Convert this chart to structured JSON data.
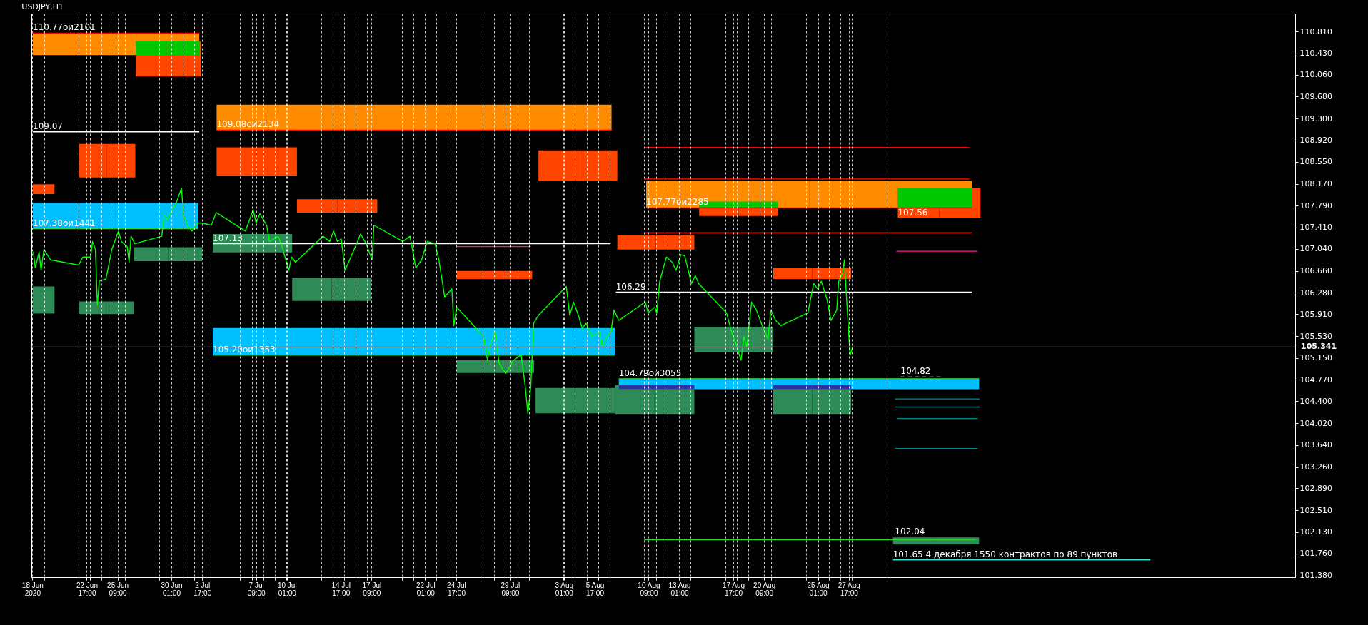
{
  "chart_data": {
    "type": "line",
    "title": "USDJPY,H1",
    "xlim": [
      "2020-06-17T22:00",
      "2020-10-05T09:00"
    ],
    "ylim": [
      101.35,
      111.12
    ],
    "xticks": [
      {
        "value": "2020-06-18T00:00",
        "label": "18 Jun 2020"
      },
      {
        "value": "2020-06-19T00:00",
        "label": null
      },
      {
        "value": "2020-06-22T00:00",
        "label": null
      },
      {
        "value": "2020-06-22T17:00",
        "label": "22 Jun 17:00"
      },
      {
        "value": "2020-06-23T00:00",
        "label": null
      },
      {
        "value": "2020-06-24T00:00",
        "label": null
      },
      {
        "value": "2020-06-25T00:00",
        "label": null
      },
      {
        "value": "2020-06-25T09:00",
        "label": "25 Jun 09:00"
      },
      {
        "value": "2020-06-26T00:00",
        "label": null
      },
      {
        "value": "2020-06-29T00:00",
        "label": null
      },
      {
        "value": "2020-06-30T00:00",
        "label": null
      },
      {
        "value": "2020-06-30T01:00",
        "label": "30 Jun 01:00"
      },
      {
        "value": "2020-07-01T00:00",
        "label": null
      },
      {
        "value": "2020-07-02T00:00",
        "label": null
      },
      {
        "value": "2020-07-02T17:00",
        "label": "2 Jul 17:00"
      },
      {
        "value": "2020-07-03T00:00",
        "label": null
      },
      {
        "value": "2020-07-06T00:00",
        "label": null
      },
      {
        "value": "2020-07-07T00:00",
        "label": null
      },
      {
        "value": "2020-07-07T09:00",
        "label": "7 Jul 09:00"
      },
      {
        "value": "2020-07-08T00:00",
        "label": null
      },
      {
        "value": "2020-07-09T00:00",
        "label": null
      },
      {
        "value": "2020-07-10T00:00",
        "label": null
      },
      {
        "value": "2020-07-10T01:00",
        "label": "10 Jul 01:00"
      },
      {
        "value": "2020-07-13T00:00",
        "label": null
      },
      {
        "value": "2020-07-14T00:00",
        "label": null
      },
      {
        "value": "2020-07-14T17:00",
        "label": "14 Jul 17:00"
      },
      {
        "value": "2020-07-15T00:00",
        "label": null
      },
      {
        "value": "2020-07-16T00:00",
        "label": null
      },
      {
        "value": "2020-07-17T00:00",
        "label": null
      },
      {
        "value": "2020-07-17T09:00",
        "label": "17 Jul 09:00"
      },
      {
        "value": "2020-07-20T00:00",
        "label": null
      },
      {
        "value": "2020-07-21T00:00",
        "label": null
      },
      {
        "value": "2020-07-22T00:00",
        "label": null
      },
      {
        "value": "2020-07-22T01:00",
        "label": "22 Jul 01:00"
      },
      {
        "value": "2020-07-23T00:00",
        "label": null
      },
      {
        "value": "2020-07-24T00:00",
        "label": null
      },
      {
        "value": "2020-07-24T17:00",
        "label": "24 Jul 17:00"
      },
      {
        "value": "2020-07-27T00:00",
        "label": null
      },
      {
        "value": "2020-07-28T00:00",
        "label": null
      },
      {
        "value": "2020-07-29T00:00",
        "label": null
      },
      {
        "value": "2020-07-29T09:00",
        "label": "29 Jul 09:00"
      },
      {
        "value": "2020-07-30T00:00",
        "label": null
      },
      {
        "value": "2020-07-31T00:00",
        "label": null
      },
      {
        "value": "2020-08-03T00:00",
        "label": null
      },
      {
        "value": "2020-08-03T01:00",
        "label": "3 Aug 01:00"
      },
      {
        "value": "2020-08-04T00:00",
        "label": null
      },
      {
        "value": "2020-08-05T00:00",
        "label": null
      },
      {
        "value": "2020-08-05T17:00",
        "label": "5 Aug 17:00"
      },
      {
        "value": "2020-08-06T00:00",
        "label": null
      },
      {
        "value": "2020-08-07T00:00",
        "label": null
      },
      {
        "value": "2020-08-10T00:00",
        "label": null
      },
      {
        "value": "2020-08-10T09:00",
        "label": "10 Aug 09:00"
      },
      {
        "value": "2020-08-11T00:00",
        "label": null
      },
      {
        "value": "2020-08-12T00:00",
        "label": null
      },
      {
        "value": "2020-08-13T00:00",
        "label": null
      },
      {
        "value": "2020-08-13T01:00",
        "label": "13 Aug 01:00"
      },
      {
        "value": "2020-08-14T00:00",
        "label": null
      },
      {
        "value": "2020-08-17T00:00",
        "label": null
      },
      {
        "value": "2020-08-17T17:00",
        "label": "17 Aug 17:00"
      },
      {
        "value": "2020-08-18T00:00",
        "label": null
      },
      {
        "value": "2020-08-19T00:00",
        "label": null
      },
      {
        "value": "2020-08-20T00:00",
        "label": null
      },
      {
        "value": "2020-08-20T09:00",
        "label": "20 Aug 09:00"
      },
      {
        "value": "2020-08-21T00:00",
        "label": null
      },
      {
        "value": "2020-08-24T00:00",
        "label": null
      },
      {
        "value": "2020-08-25T00:00",
        "label": null
      },
      {
        "value": "2020-08-25T01:00",
        "label": "25 Aug 01:00"
      },
      {
        "value": "2020-08-26T00:00",
        "label": null
      },
      {
        "value": "2020-08-27T00:00",
        "label": null
      },
      {
        "value": "2020-08-27T17:00",
        "label": "27 Aug 17:00"
      },
      {
        "value": "2020-08-28T00:00",
        "label": null
      },
      {
        "value": "2020-08-31T00:00",
        "label": null
      }
    ],
    "yticks": [
      {
        "value": 110.81,
        "label": "110.810"
      },
      {
        "value": 110.43,
        "label": "110.430"
      },
      {
        "value": 110.06,
        "label": "110.060"
      },
      {
        "value": 109.68,
        "label": "109.680"
      },
      {
        "value": 109.3,
        "label": "109.300"
      },
      {
        "value": 108.92,
        "label": "108.920"
      },
      {
        "value": 108.55,
        "label": "108.550"
      },
      {
        "value": 108.17,
        "label": "108.170"
      },
      {
        "value": 107.79,
        "label": "107.790"
      },
      {
        "value": 107.41,
        "label": "107.410"
      },
      {
        "value": 107.04,
        "label": "107.040"
      },
      {
        "value": 106.66,
        "label": "106.660"
      },
      {
        "value": 106.28,
        "label": "106.280"
      },
      {
        "value": 105.91,
        "label": "105.910"
      },
      {
        "value": 105.53,
        "label": "105.530"
      },
      {
        "value": 105.15,
        "label": "105.150"
      },
      {
        "value": 104.77,
        "label": "104.770"
      },
      {
        "value": 104.4,
        "label": "104.400"
      },
      {
        "value": 104.02,
        "label": "104.020"
      },
      {
        "value": 103.64,
        "label": "103.640"
      },
      {
        "value": 103.26,
        "label": "103.260"
      },
      {
        "value": 102.89,
        "label": "102.890"
      },
      {
        "value": 102.51,
        "label": "102.510"
      },
      {
        "value": 102.13,
        "label": "102.130"
      },
      {
        "value": 101.76,
        "label": "101.760"
      },
      {
        "value": 101.38,
        "label": "101.380"
      }
    ],
    "grid": "x",
    "series": [
      {
        "color": "#ff8c00",
        "x": [
          "2020-06-18T01:00",
          "2020-07-02T11:00"
        ],
        "values": [
          null,
          null
        ],
        "lower": [
          110.4,
          110.4
        ],
        "upper": [
          110.78,
          110.78
        ]
      },
      {
        "color": "#ff4500",
        "x": [
          "2020-06-26T23:00",
          "2020-07-02T15:00"
        ],
        "values": [
          null,
          null
        ],
        "lower": [
          110.03,
          110.03
        ],
        "upper": [
          110.64,
          110.64
        ]
      },
      {
        "color": "#00c800",
        "x": [
          "2020-06-26T23:00",
          "2020-07-02T11:00"
        ],
        "values": [
          null,
          null
        ],
        "lower": [
          110.4,
          110.4
        ],
        "upper": [
          110.64,
          110.64
        ]
      },
      {
        "color": "#ff8c00",
        "x": [
          "2020-07-03T23:00",
          "2020-08-07T04:00"
        ],
        "values": [
          null,
          null
        ],
        "lower": [
          109.1,
          109.1
        ],
        "upper": [
          109.54,
          109.54
        ]
      },
      {
        "color": "#ff4500",
        "x": [
          "2020-06-22T00:00",
          "2020-06-26T22:00"
        ],
        "values": [
          null,
          null
        ],
        "lower": [
          108.28,
          108.28
        ],
        "upper": [
          108.86,
          108.86
        ]
      },
      {
        "color": "#ff4500",
        "x": [
          "2020-06-18T01:00",
          "2020-06-19T22:00"
        ],
        "values": [
          null,
          null
        ],
        "lower": [
          107.99,
          107.99
        ],
        "upper": [
          108.16,
          108.16
        ]
      },
      {
        "color": "#00bfff",
        "x": [
          "2020-06-18T01:00",
          "2020-07-02T09:00"
        ],
        "values": [
          null,
          null
        ],
        "lower": [
          107.39,
          107.39
        ],
        "upper": [
          107.84,
          107.84
        ]
      },
      {
        "color": "#ff4500",
        "x": [
          "2020-07-03T23:00",
          "2020-07-10T22:00"
        ],
        "values": [
          null,
          null
        ],
        "lower": [
          108.31,
          108.31
        ],
        "upper": [
          108.8,
          108.8
        ]
      },
      {
        "color": "#ff4500",
        "x": [
          "2020-07-10T22:00",
          "2020-07-17T21:00"
        ],
        "values": [
          null,
          null
        ],
        "lower": [
          107.67,
          107.67
        ],
        "upper": [
          107.9,
          107.9
        ]
      },
      {
        "color": "#ff4500",
        "x": [
          "2020-07-31T20:00",
          "2020-08-07T16:00"
        ],
        "values": [
          null,
          null
        ],
        "lower": [
          108.22,
          108.22
        ],
        "upper": [
          108.75,
          108.75
        ]
      },
      {
        "color": "#ff8c00",
        "x": [
          "2020-08-10T04:00",
          "2020-09-07T09:00"
        ],
        "values": [
          null,
          null
        ],
        "lower": [
          107.75,
          107.75
        ],
        "upper": [
          108.22,
          108.22
        ]
      },
      {
        "color": "#00c800",
        "x": [
          "2020-08-14T18:00",
          "2020-08-21T14:00"
        ],
        "values": [
          null,
          null
        ],
        "lower": [
          107.75,
          107.75
        ],
        "upper": [
          107.86,
          107.86
        ]
      },
      {
        "color": "#ff4500",
        "x": [
          "2020-08-14T18:00",
          "2020-08-21T14:00"
        ],
        "values": [
          null,
          null
        ],
        "lower": [
          107.61,
          107.61
        ],
        "upper": [
          107.75,
          107.75
        ]
      },
      {
        "color": "#ff4500",
        "x": [
          "2020-08-31T23:00",
          "2020-09-08T03:00"
        ],
        "values": [
          null,
          null
        ],
        "lower": [
          107.57,
          107.57
        ],
        "upper": [
          108.09,
          108.09
        ]
      },
      {
        "color": "#00c800",
        "x": [
          "2020-08-31T23:00",
          "2020-09-07T09:00"
        ],
        "values": [
          null,
          null
        ],
        "lower": [
          107.75,
          107.75
        ],
        "upper": [
          108.09,
          108.09
        ]
      },
      {
        "color": "#2e8b57",
        "x": [
          "2020-06-18T01:00",
          "2020-06-19T22:00"
        ],
        "values": [
          null,
          null
        ],
        "lower": [
          105.92,
          105.92
        ],
        "upper": [
          106.39,
          106.39
        ]
      },
      {
        "color": "#2e8b57",
        "x": [
          "2020-06-22T00:00",
          "2020-06-26T19:00"
        ],
        "values": [
          null,
          null
        ],
        "lower": [
          105.91,
          105.91
        ],
        "upper": [
          106.13,
          106.13
        ]
      },
      {
        "color": "#2e8b57",
        "x": [
          "2020-06-26T19:00",
          "2020-07-02T17:00"
        ],
        "values": [
          null,
          null
        ],
        "lower": [
          106.83,
          106.83
        ],
        "upper": [
          107.07,
          107.07
        ]
      },
      {
        "color": "#2e8b57",
        "x": [
          "2020-07-03T15:00",
          "2020-07-10T12:00"
        ],
        "values": [
          null,
          null
        ],
        "lower": [
          106.98,
          106.98
        ],
        "upper": [
          107.3,
          107.3
        ]
      },
      {
        "color": "#2e8b57",
        "x": [
          "2020-07-10T12:00",
          "2020-07-17T08:00"
        ],
        "values": [
          null,
          null
        ],
        "lower": [
          106.14,
          106.14
        ],
        "upper": [
          106.54,
          106.54
        ]
      },
      {
        "color": "#ff4500",
        "x": [
          "2020-07-24T18:00",
          "2020-07-31T07:00"
        ],
        "values": [
          null,
          null
        ],
        "lower": [
          106.52,
          106.52
        ],
        "upper": [
          106.66,
          106.66
        ]
      },
      {
        "color": "#ff4500",
        "x": [
          "2020-08-07T16:00",
          "2020-08-14T08:00"
        ],
        "values": [
          null,
          null
        ],
        "lower": [
          107.03,
          107.03
        ],
        "upper": [
          107.28,
          107.28
        ]
      },
      {
        "color": "#ff4500",
        "x": [
          "2020-08-21T04:00",
          "2020-08-27T22:00"
        ],
        "values": [
          null,
          null
        ],
        "lower": [
          106.52,
          106.52
        ],
        "upper": [
          106.71,
          106.71
        ]
      },
      {
        "color": "#00bfff",
        "x": [
          "2020-07-03T15:00",
          "2020-08-07T11:00"
        ],
        "values": [
          null,
          null
        ],
        "lower": [
          105.2,
          105.2
        ],
        "upper": [
          105.67,
          105.67
        ]
      },
      {
        "color": "#2e8b57",
        "x": [
          "2020-07-24T18:00",
          "2020-07-31T11:00"
        ],
        "values": [
          null,
          null
        ],
        "lower": [
          104.89,
          104.89
        ],
        "upper": [
          105.11,
          105.11
        ]
      },
      {
        "color": "#2e8b57",
        "x": [
          "2020-07-31T14:00",
          "2020-08-07T11:00"
        ],
        "values": [
          null,
          null
        ],
        "lower": [
          104.19,
          104.19
        ],
        "upper": [
          104.63,
          104.63
        ]
      },
      {
        "color": "#2e8b57",
        "x": [
          "2020-08-07T11:00",
          "2020-08-14T08:00"
        ],
        "values": [
          null,
          null
        ],
        "lower": [
          104.18,
          104.18
        ],
        "upper": [
          104.68,
          104.68
        ]
      },
      {
        "color": "#2e8b57",
        "x": [
          "2020-08-14T08:00",
          "2020-08-21T04:00"
        ],
        "values": [
          null,
          null
        ],
        "lower": [
          105.25,
          105.25
        ],
        "upper": [
          105.69,
          105.69
        ]
      },
      {
        "color": "#2e8b57",
        "x": [
          "2020-08-21T04:00",
          "2020-08-27T22:00"
        ],
        "values": [
          null,
          null
        ],
        "lower": [
          104.18,
          104.18
        ],
        "upper": [
          104.68,
          104.68
        ]
      },
      {
        "color": "#00bfff",
        "x": [
          "2020-08-07T19:00",
          "2020-09-08T00:00"
        ],
        "values": [
          null,
          null
        ],
        "lower": [
          104.61,
          104.61
        ],
        "upper": [
          104.79,
          104.79
        ]
      },
      {
        "color": "#3333a0",
        "x": [
          "2020-08-07T19:00",
          "2020-08-14T08:00"
        ],
        "values": [
          null,
          null
        ],
        "lower": [
          104.61,
          104.61
        ],
        "upper": [
          104.68,
          104.68
        ]
      },
      {
        "color": "#3333a0",
        "x": [
          "2020-08-21T04:00",
          "2020-08-27T22:00"
        ],
        "values": [
          null,
          null
        ],
        "lower": [
          104.61,
          104.61
        ],
        "upper": [
          104.68,
          104.68
        ]
      },
      {
        "color": "#2e8b57",
        "x": [
          "2020-08-31T13:00",
          "2020-09-08T00:00"
        ],
        "values": [
          null,
          null
        ],
        "lower": [
          101.92,
          101.92
        ],
        "upper": [
          102.04,
          102.04
        ]
      },
      {
        "color": "#ff0000",
        "x": [
          "2020-06-18T01:00",
          "2020-07-02T11:00"
        ],
        "values": [
          110.78,
          110.78
        ]
      },
      {
        "color": "#ffffff",
        "x": [
          "2020-06-18T01:00",
          "2020-07-02T11:00"
        ],
        "values": [
          109.07,
          109.07
        ]
      },
      {
        "color": "#32cd32",
        "x": [
          "2020-06-18T01:00",
          "2020-07-02T09:00"
        ],
        "values": [
          107.39,
          107.39
        ]
      },
      {
        "color": "#ff0000",
        "x": [
          "2020-07-03T23:00",
          "2020-08-07T04:00"
        ],
        "values": [
          109.1,
          109.1
        ]
      },
      {
        "color": "#ffffff",
        "x": [
          "2020-07-03T15:00",
          "2020-08-07T02:00"
        ],
        "values": [
          107.13,
          107.13
        ]
      },
      {
        "color": "#ff1493",
        "x": [
          "2020-07-24T18:00",
          "2020-07-31T04:00"
        ],
        "values": [
          107.08,
          107.08
        ]
      },
      {
        "color": "#32cd32",
        "x": [
          "2020-07-03T15:00",
          "2020-08-07T11:00"
        ],
        "values": [
          105.2,
          105.2
        ]
      },
      {
        "color": "#ff0000",
        "x": [
          "2020-08-10T00:00",
          "2020-09-07T04:00"
        ],
        "values": [
          108.8,
          108.8
        ]
      },
      {
        "color": "#ff0000",
        "x": [
          "2020-08-10T00:00",
          "2020-09-07T04:00"
        ],
        "values": [
          108.25,
          108.25
        ]
      },
      {
        "color": "#ff0000",
        "x": [
          "2020-08-10T04:00",
          "2020-09-07T09:00"
        ],
        "values": [
          107.75,
          107.75
        ]
      },
      {
        "color": "#ff0000",
        "x": [
          "2020-08-10T00:00",
          "2020-09-07T09:00"
        ],
        "values": [
          107.32,
          107.32
        ]
      },
      {
        "color": "#ff1493",
        "x": [
          "2020-08-31T20:00",
          "2020-09-07T20:00"
        ],
        "values": [
          107.0,
          107.0
        ]
      },
      {
        "color": "#ffffff",
        "x": [
          "2020-08-07T13:00",
          "2020-09-07T09:00"
        ],
        "values": [
          106.29,
          106.29
        ]
      },
      {
        "color": "#32cd32",
        "x": [
          "2020-08-07T19:00",
          "2020-09-08T00:00"
        ],
        "values": [
          104.79,
          104.79
        ]
      },
      {
        "color": "#ffffff",
        "x": [
          "2020-09-01T05:00",
          "2020-09-04T22:00"
        ],
        "values": [
          104.82,
          104.82
        ],
        "line_style": "dashed"
      },
      {
        "color": "#008b8b",
        "x": [
          "2020-08-31T17:00",
          "2020-09-08T01:00"
        ],
        "values": [
          104.44,
          104.44
        ]
      },
      {
        "color": "#008b8b",
        "x": [
          "2020-08-31T17:00",
          "2020-09-08T01:00"
        ],
        "values": [
          104.3,
          104.3
        ]
      },
      {
        "color": "#008b8b",
        "x": [
          "2020-08-31T21:00",
          "2020-09-07T21:00"
        ],
        "values": [
          104.1,
          104.1
        ]
      },
      {
        "color": "#008b8b",
        "x": [
          "2020-08-31T17:00",
          "2020-09-07T21:00"
        ],
        "values": [
          103.58,
          103.58
        ]
      },
      {
        "color": "#32cd32",
        "x": [
          "2020-08-10T00:00",
          "2020-09-07T17:00"
        ],
        "values": [
          102.0,
          102.0
        ]
      },
      {
        "color": "#40e0d0",
        "x": [
          "2020-08-31T13:00",
          "2020-09-22T20:00"
        ],
        "values": [
          101.65,
          101.65
        ]
      },
      {
        "color": "#00ff00",
        "x": [
          "2020-06-18T02:00",
          "2020-06-18T06:00",
          "2020-06-18T14:00",
          "2020-06-18T18:00",
          "2020-06-19T00:00",
          "2020-06-19T14:00",
          "2020-06-22T00:00",
          "2020-06-22T09:00",
          "2020-06-23T01:00",
          "2020-06-23T05:00",
          "2020-06-23T11:00",
          "2020-06-23T15:00",
          "2020-06-23T19:00",
          "2020-06-24T09:00",
          "2020-06-24T21:00",
          "2020-06-25T11:00",
          "2020-06-25T17:00",
          "2020-06-26T05:00",
          "2020-06-26T09:00",
          "2020-06-26T13:00",
          "2020-06-26T21:00",
          "2020-06-29T05:00",
          "2020-06-29T10:00",
          "2020-06-29T16:00",
          "2020-06-30T12:00",
          "2020-06-30T22:00",
          "2020-07-01T02:00",
          "2020-07-01T10:00",
          "2020-07-01T20:00",
          "2020-07-02T08:00",
          "2020-07-02T16:00",
          "2020-07-03T12:00",
          "2020-07-03T22:00",
          "2020-07-06T11:00",
          "2020-07-07T03:00",
          "2020-07-07T09:00",
          "2020-07-07T17:00",
          "2020-07-08T07:00",
          "2020-07-08T13:00",
          "2020-07-09T07:00",
          "2020-07-09T15:00",
          "2020-07-10T05:00",
          "2020-07-10T11:00",
          "2020-07-10T19:00",
          "2020-07-13T04:00",
          "2020-07-13T18:00",
          "2020-07-14T02:00",
          "2020-07-14T10:00",
          "2020-07-14T18:00",
          "2020-07-15T02:00",
          "2020-07-15T14:00",
          "2020-07-16T02:00",
          "2020-07-16T10:00",
          "2020-07-16T22:00",
          "2020-07-17T10:00",
          "2020-07-17T14:00",
          "2020-07-20T02:00",
          "2020-07-20T17:00",
          "2020-07-21T05:00",
          "2020-07-21T17:00",
          "2020-07-22T05:00",
          "2020-07-22T21:00",
          "2020-07-23T05:00",
          "2020-07-23T17:00",
          "2020-07-24T08:00",
          "2020-07-24T12:00",
          "2020-07-24T18:00",
          "2020-07-27T02:00",
          "2020-07-27T10:00",
          "2020-07-27T16:00",
          "2020-07-28T02:00",
          "2020-07-28T10:00",
          "2020-07-29T00:00",
          "2020-07-29T16:00",
          "2020-07-30T08:00",
          "2020-07-30T16:00",
          "2020-07-30T22:00",
          "2020-07-31T04:00",
          "2020-07-31T10:00",
          "2020-07-31T20:00",
          "2020-08-03T06:00",
          "2020-08-03T13:00",
          "2020-08-03T21:00",
          "2020-08-04T07:00",
          "2020-08-04T15:00",
          "2020-08-04T23:00",
          "2020-08-05T11:00",
          "2020-08-06T03:00",
          "2020-08-06T09:00",
          "2020-08-06T19:00",
          "2020-08-07T03:00",
          "2020-08-07T09:00",
          "2020-08-07T19:00",
          "2020-08-10T02:00",
          "2020-08-10T08:00",
          "2020-08-10T22:00",
          "2020-08-11T02:00",
          "2020-08-11T08:00",
          "2020-08-11T22:00",
          "2020-08-12T10:00",
          "2020-08-12T18:00",
          "2020-08-13T04:00",
          "2020-08-13T12:00",
          "2020-08-14T02:00",
          "2020-08-14T10:00",
          "2020-08-14T17:00",
          "2020-08-17T03:00",
          "2020-08-17T13:00",
          "2020-08-17T23:00",
          "2020-08-18T09:00",
          "2020-08-18T15:00",
          "2020-08-18T21:00",
          "2020-08-19T07:00",
          "2020-08-19T17:00",
          "2020-08-20T05:00",
          "2020-08-20T17:00",
          "2020-08-20T23:00",
          "2020-08-21T09:00",
          "2020-08-21T20:00",
          "2020-08-24T04:00",
          "2020-08-24T16:00",
          "2020-08-25T00:00",
          "2020-08-25T08:00",
          "2020-08-25T20:00",
          "2020-08-26T04:00",
          "2020-08-26T16:00",
          "2020-08-26T20:00",
          "2020-08-27T04:00",
          "2020-08-27T08:00",
          "2020-08-27T12:00",
          "2020-08-27T18:00",
          "2020-08-27T20:00",
          "2020-08-28T01:00"
        ],
        "values": [
          106.99,
          106.71,
          106.99,
          106.67,
          107.03,
          106.85,
          106.76,
          106.9,
          106.9,
          107.17,
          107.03,
          106.07,
          106.48,
          106.52,
          107.03,
          107.35,
          107.17,
          107.08,
          106.81,
          107.26,
          107.13,
          107.26,
          107.63,
          107.54,
          107.86,
          108.09,
          107.63,
          107.45,
          107.35,
          107.49,
          107.49,
          107.45,
          107.67,
          107.35,
          107.72,
          107.49,
          107.65,
          107.45,
          107.17,
          107.26,
          107.08,
          106.67,
          106.9,
          106.81,
          107.26,
          107.17,
          107.35,
          107.17,
          107.21,
          106.67,
          106.9,
          107.13,
          107.3,
          107.13,
          106.85,
          107.45,
          107.17,
          107.26,
          106.71,
          106.85,
          107.17,
          107.13,
          106.85,
          106.21,
          106.35,
          105.71,
          106.03,
          105.52,
          105.11,
          105.38,
          105.61,
          105.06,
          104.88,
          105.11,
          105.2,
          104.7,
          104.19,
          104.65,
          105.75,
          105.89,
          106.39,
          105.89,
          106.12,
          105.89,
          105.66,
          105.75,
          105.52,
          105.61,
          105.34,
          105.52,
          105.61,
          105.98,
          105.8,
          106.12,
          105.93,
          106.03,
          105.93,
          106.48,
          106.9,
          106.81,
          106.67,
          106.94,
          106.92,
          106.44,
          106.58,
          106.44,
          105.93,
          105.61,
          105.38,
          105.11,
          105.52,
          105.34,
          106.12,
          105.98,
          105.71,
          105.48,
          105.98,
          105.8,
          105.71,
          105.93,
          106.44,
          106.35,
          106.48,
          106.16,
          105.8,
          105.98,
          106.48,
          106.62,
          106.85,
          106.25,
          105.43,
          105.2,
          105.34
        ]
      }
    ],
    "ref_lines": [
      {
        "axis": "y",
        "value": 105.341,
        "label": "105.341",
        "color": "#808080"
      }
    ],
    "annotations": [
      {
        "text": "110.77ои2101",
        "x": "2020-06-18T01:00",
        "y": 110.78
      },
      {
        "text": "109.07",
        "x": "2020-06-18T01:00",
        "y": 109.07
      },
      {
        "text": "109.08ои2134",
        "x": "2020-07-03T23:00",
        "y": 109.1
      },
      {
        "text": "107.38ои1441",
        "x": "2020-06-18T01:00",
        "y": 107.39
      },
      {
        "text": "107.13",
        "x": "2020-07-03T15:00",
        "y": 107.13
      },
      {
        "text": "105.20ои1353",
        "x": "2020-07-03T15:00",
        "y": 105.2
      },
      {
        "text": "107.77ои2285",
        "x": "2020-08-10T04:00",
        "y": 107.75
      },
      {
        "text": "107.56",
        "x": "2020-08-31T23:00",
        "y": 107.57
      },
      {
        "text": "106.29",
        "x": "2020-08-07T13:00",
        "y": 106.29
      },
      {
        "text": "104.79ои3055",
        "x": "2020-08-07T19:00",
        "y": 104.79
      },
      {
        "text": "104.82",
        "x": "2020-09-01T05:00",
        "y": 104.82
      },
      {
        "text": "102.04",
        "x": "2020-08-31T17:00",
        "y": 102.04
      },
      {
        "text": "101.65 4 декабря 1550 контрактов по 89 пунктов",
        "x": "2020-08-31T13:00",
        "y": 101.65
      }
    ]
  }
}
